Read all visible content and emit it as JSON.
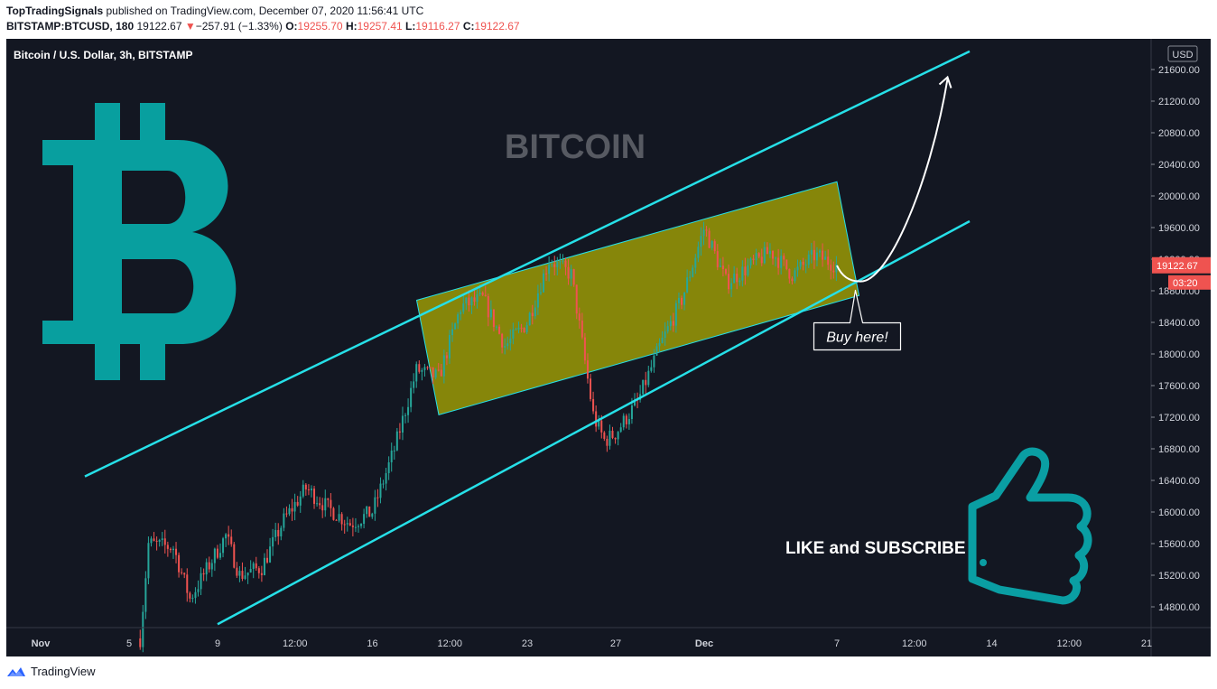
{
  "header": {
    "publisher": "TopTradingSignals",
    "published_text": "published on TradingView.com, December 07, 2020 11:56:41 UTC",
    "symbol": "BITSTAMP:BTCUSD, 180",
    "last": "19122.67",
    "change_arrow": "▼",
    "change": "−257.91 (−1.33%)",
    "o_label": "O:",
    "o_value": "19255.70",
    "h_label": "H:",
    "h_value": "19257.41",
    "l_label": "L:",
    "l_value": "19116.27",
    "c_label": "C:",
    "c_value": "19122.67"
  },
  "chart": {
    "legend": "Bitcoin / U.S. Dollar, 3h, BITSTAMP",
    "currency": "USD",
    "watermark": "BITCOIN",
    "price_label": "19122.67",
    "timer_label": "03:20",
    "callout": "Buy here!",
    "cta": "LIKE and SUBSCRIBE",
    "colors": {
      "background": "#131722",
      "up": "#26a69a",
      "down": "#ef5350",
      "channel": "#26e0e8",
      "rect_fill": "#9b9a06",
      "logo": "#089f9f",
      "thumb": "#0a9ea3",
      "axis_text": "#d1d4dc"
    },
    "icons": [
      "bitcoin-logo-icon",
      "thumbs-up-icon",
      "tradingview-logo-icon"
    ]
  },
  "chart_data": {
    "type": "candlestick",
    "title": "Bitcoin / U.S. Dollar, 3h, BITSTAMP",
    "y_unit": "USD",
    "y_ticks": [
      "21600.00",
      "21200.00",
      "20800.00",
      "20400.00",
      "20000.00",
      "19600.00",
      "19200.00",
      "18800.00",
      "18400.00",
      "18000.00",
      "17600.00",
      "17200.00",
      "16800.00",
      "16400.00",
      "16000.00",
      "15600.00",
      "15200.00",
      "14800.00"
    ],
    "x_ticks": [
      "Nov",
      "5",
      "9",
      "12:00",
      "16",
      "12:00",
      "23",
      "27",
      "Dec",
      "7",
      "12:00",
      "14",
      "12:00",
      "21"
    ],
    "last_price": 19122.67,
    "price_path": [
      {
        "x": "Nov 5 12:00",
        "close": 14400
      },
      {
        "x": "Nov 5 21:00",
        "close": 15600
      },
      {
        "x": "Nov 7",
        "close": 15550
      },
      {
        "x": "Nov 7 18:00",
        "close": 14900
      },
      {
        "x": "Nov 9 09:00",
        "close": 15700
      },
      {
        "x": "Nov 10",
        "close": 15200
      },
      {
        "x": "Nov 11",
        "close": 15300
      },
      {
        "x": "Nov 12",
        "close": 15900
      },
      {
        "x": "Nov 13",
        "close": 16300
      },
      {
        "x": "Nov 14",
        "close": 16050
      },
      {
        "x": "Nov 15",
        "close": 15850
      },
      {
        "x": "Nov 16",
        "close": 16000
      },
      {
        "x": "Nov 17",
        "close": 16800
      },
      {
        "x": "Nov 18",
        "close": 17800
      },
      {
        "x": "Nov 19",
        "close": 17700
      },
      {
        "x": "Nov 20",
        "close": 18600
      },
      {
        "x": "Nov 21",
        "close": 18700
      },
      {
        "x": "Nov 22",
        "close": 18100
      },
      {
        "x": "Nov 23",
        "close": 18400
      },
      {
        "x": "Nov 24",
        "close": 19200
      },
      {
        "x": "Nov 25",
        "close": 19000
      },
      {
        "x": "Nov 26",
        "close": 17200
      },
      {
        "x": "Nov 26 12:00",
        "close": 16900
      },
      {
        "x": "Nov 27",
        "close": 17000
      },
      {
        "x": "Nov 28",
        "close": 17400
      },
      {
        "x": "Nov 29",
        "close": 18100
      },
      {
        "x": "Nov 30",
        "close": 18700
      },
      {
        "x": "Dec 1",
        "close": 19600
      },
      {
        "x": "Dec 2",
        "close": 18900
      },
      {
        "x": "Dec 3",
        "close": 19100
      },
      {
        "x": "Dec 4",
        "close": 19300
      },
      {
        "x": "Dec 5",
        "close": 19000
      },
      {
        "x": "Dec 6",
        "close": 19250
      },
      {
        "x": "Dec 7",
        "close": 19122.67
      }
    ],
    "annotations": {
      "channel_upper": [
        {
          "x": "Nov 3",
          "y": 16450
        },
        {
          "x": "Dec 13",
          "y": 21830
        }
      ],
      "channel_lower": [
        {
          "x": "Nov 9",
          "y": 14580
        },
        {
          "x": "Dec 13",
          "y": 19680
        }
      ],
      "consolidation_box": [
        {
          "x": "Nov 18",
          "y": 18680
        },
        {
          "x": "Dec 7",
          "y": 20180
        },
        {
          "x": "Dec 8",
          "y": 18740
        },
        {
          "x": "Nov 19",
          "y": 17230
        }
      ],
      "projection": [
        {
          "x": "Dec 7",
          "y": 19120
        },
        {
          "x": "Dec 8",
          "y": 18920
        },
        {
          "x": "Dec 12",
          "y": 21480
        }
      ]
    }
  },
  "footer": {
    "brand": "TradingView"
  }
}
